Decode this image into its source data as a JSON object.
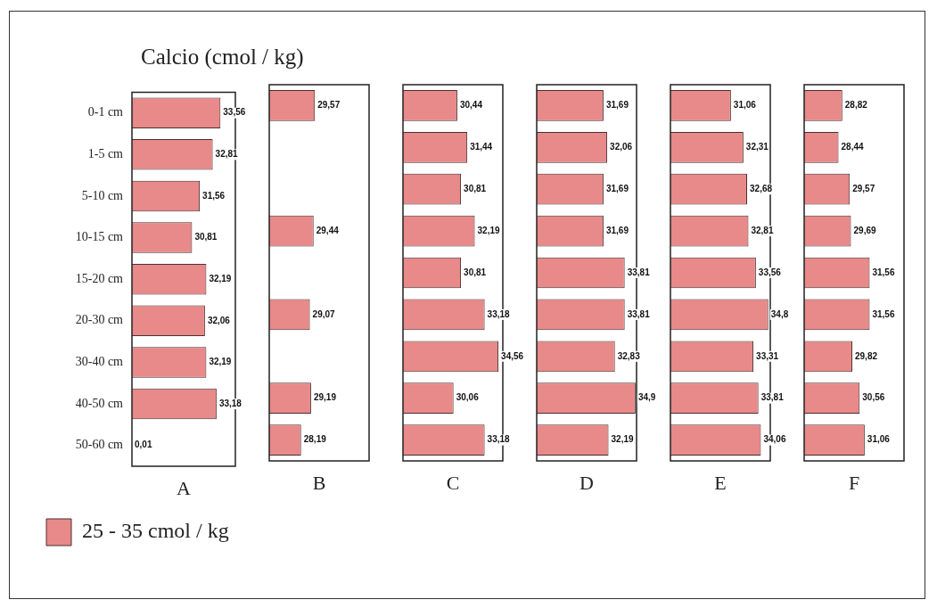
{
  "chart_data": [
    {
      "type": "bar",
      "orientation": "horizontal",
      "title": "Calcio (cmol / kg)",
      "xlabel": "A",
      "categories": [
        "0-1 cm",
        "1-5 cm",
        "5-10 cm",
        "10-15 cm",
        "15-20 cm",
        "20-30 cm",
        "30-40 cm",
        "40-50 cm",
        "50-60 cm"
      ],
      "xlim": [
        25,
        35
      ],
      "tick_labels": "y",
      "legend": "bottom left",
      "series": [
        {
          "name": "25 - 35 cmol / kg",
          "color": "#e8898a",
          "values": [
            33.56,
            32.81,
            31.56,
            30.81,
            32.19,
            32.06,
            32.19,
            33.18,
            null
          ],
          "value_labels": [
            "33,56",
            "32,81",
            "31,56",
            "30,81",
            "32,19",
            "32,06",
            "32,19",
            "33,18",
            "0,01"
          ]
        }
      ]
    },
    {
      "type": "bar",
      "orientation": "horizontal",
      "xlabel": "B",
      "categories": [
        null,
        null,
        null,
        null,
        null,
        null,
        null,
        null,
        null
      ],
      "xlim": [
        25,
        35
      ],
      "tick_labels": false,
      "series": [
        {
          "color": "#e8898a",
          "values": [
            29.57,
            null,
            null,
            29.44,
            null,
            29.07,
            null,
            29.19,
            28.19
          ],
          "value_labels": [
            "29,57",
            null,
            null,
            "29,44",
            null,
            "29,07",
            null,
            "29,19",
            "28,19"
          ]
        }
      ]
    },
    {
      "type": "bar",
      "orientation": "horizontal",
      "xlabel": "C",
      "categories": [
        null,
        null,
        null,
        null,
        null,
        null,
        null,
        null,
        null
      ],
      "xlim": [
        25,
        35
      ],
      "tick_labels": false,
      "series": [
        {
          "color": "#e8898a",
          "values": [
            30.44,
            31.44,
            30.81,
            32.19,
            30.81,
            33.18,
            34.56,
            30.06,
            33.18
          ],
          "value_labels": [
            "30,44",
            "31,44",
            "30,81",
            "32,19",
            "30,81",
            "33,18",
            "34,56",
            "30,06",
            "33,18"
          ]
        }
      ]
    },
    {
      "type": "bar",
      "orientation": "horizontal",
      "xlabel": "D",
      "categories": [
        null,
        null,
        null,
        null,
        null,
        null,
        null,
        null,
        null
      ],
      "xlim": [
        25,
        35
      ],
      "tick_labels": false,
      "series": [
        {
          "color": "#e8898a",
          "values": [
            31.69,
            32.06,
            31.69,
            31.69,
            33.81,
            33.81,
            32.83,
            34.9,
            32.19
          ],
          "value_labels": [
            "31,69",
            "32,06",
            "31,69",
            "31,69",
            "33,81",
            "33,81",
            "32,83",
            "34,9",
            "32,19"
          ]
        }
      ]
    },
    {
      "type": "bar",
      "orientation": "horizontal",
      "xlabel": "E",
      "categories": [
        null,
        null,
        null,
        null,
        null,
        null,
        null,
        null,
        null
      ],
      "xlim": [
        25,
        35
      ],
      "tick_labels": false,
      "series": [
        {
          "color": "#e8898a",
          "values": [
            31.06,
            32.31,
            32.68,
            32.81,
            33.56,
            34.8,
            33.31,
            33.81,
            34.06
          ],
          "value_labels": [
            "31,06",
            "32,31",
            "32,68",
            "32,81",
            "33,56",
            "34,8",
            "33,31",
            "33,81",
            "34,06"
          ]
        }
      ]
    },
    {
      "type": "bar",
      "orientation": "horizontal",
      "xlabel": "F",
      "categories": [
        null,
        null,
        null,
        null,
        null,
        null,
        null,
        null,
        null
      ],
      "xlim": [
        25,
        35
      ],
      "tick_labels": false,
      "series": [
        {
          "color": "#e8898a",
          "values": [
            28.82,
            28.44,
            29.57,
            29.69,
            31.56,
            31.56,
            29.82,
            30.56,
            31.06
          ],
          "value_labels": [
            "28,82",
            "28,44",
            "29,57",
            "29,69",
            "31,56",
            "31,56",
            "29,82",
            "30,56",
            "31,06"
          ]
        }
      ]
    }
  ]
}
